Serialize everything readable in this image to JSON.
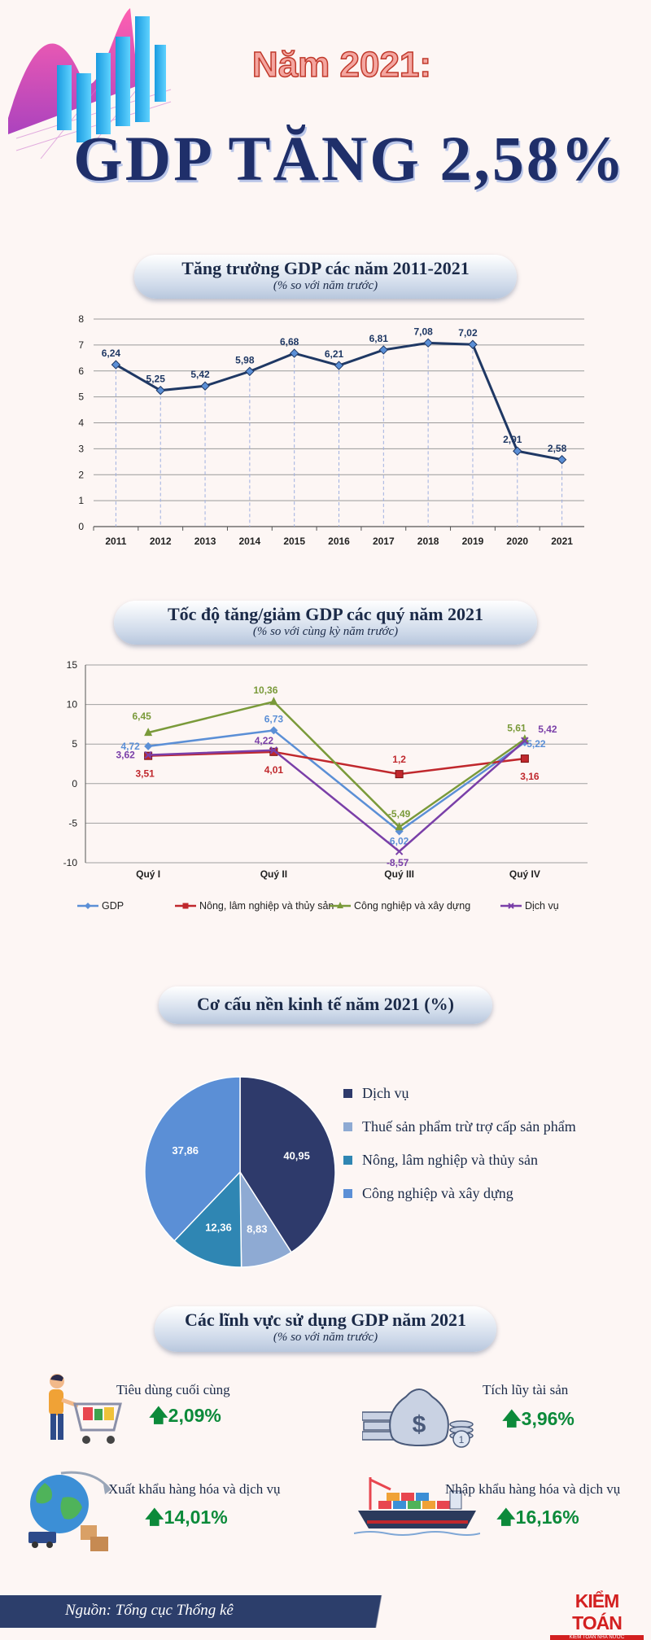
{
  "header": {
    "line1": "Năm 2021:",
    "line2": "GDP TĂNG 2,58%"
  },
  "sections": {
    "s1": {
      "title": "Tăng trưởng GDP các năm 2011-2021",
      "subtitle": "(% so với năm trước)"
    },
    "s2": {
      "title": "Tốc độ tăng/giảm GDP các quý năm 2021",
      "subtitle": "(% so với cùng kỳ năm trước)"
    },
    "s3": {
      "title": "Cơ cấu nền kinh tế năm 2021 (%)"
    },
    "s4": {
      "title": "Các lĩnh vực sử dụng GDP năm 2021",
      "subtitle": "(% so với năm trước)"
    }
  },
  "chart_data": [
    {
      "type": "line",
      "x": [
        "2011",
        "2012",
        "2013",
        "2014",
        "2015",
        "2016",
        "2017",
        "2018",
        "2019",
        "2020",
        "2021"
      ],
      "values": [
        6.24,
        5.25,
        5.42,
        5.98,
        6.68,
        6.21,
        6.81,
        7.08,
        7.02,
        2.91,
        2.58
      ],
      "labels": [
        "6,24",
        "5,25",
        "5,42",
        "5,98",
        "6,68",
        "6,21",
        "6,81",
        "7,08",
        "7,02",
        "2,91",
        "2,58"
      ],
      "yticks": [
        "0",
        "1",
        "2",
        "3",
        "4",
        "5",
        "6",
        "7",
        "8"
      ],
      "ylim": [
        0,
        8
      ],
      "grid": true,
      "color": "#1f3864"
    },
    {
      "type": "line",
      "categories": [
        "Quý I",
        "Quý II",
        "Quý III",
        "Quý IV"
      ],
      "yticks": [
        "15",
        "10",
        "5",
        "0",
        "-5",
        "-10"
      ],
      "ylim": [
        -10,
        15
      ],
      "grid": true,
      "legend": "bottom",
      "series": [
        {
          "name": "GDP",
          "color": "#5b8fd6",
          "marker": "diamond",
          "values": [
            4.72,
            6.73,
            -6.02,
            5.22
          ],
          "labels": [
            "4,72",
            "6,73",
            "-6,02",
            "5,22"
          ]
        },
        {
          "name": "Nông, lâm nghiệp và thủy sản",
          "color": "#c0282d",
          "marker": "square",
          "values": [
            3.51,
            4.01,
            1.2,
            3.16
          ],
          "labels": [
            "3,51",
            "4,01",
            "1,2",
            "3,16"
          ]
        },
        {
          "name": "Công nghiệp và xây dựng",
          "color": "#7a9a3a",
          "marker": "triangle",
          "values": [
            6.45,
            10.36,
            -5.49,
            5.61
          ],
          "labels": [
            "6,45",
            "10,36",
            "-5,49",
            "5,61"
          ]
        },
        {
          "name": "Dịch vụ",
          "color": "#7a3fa8",
          "marker": "x",
          "values": [
            3.62,
            4.22,
            -8.57,
            5.42
          ],
          "labels": [
            "3,62",
            "4,22",
            "-8,57",
            "5,42"
          ]
        }
      ]
    },
    {
      "type": "pie",
      "slices": [
        {
          "name": "Dịch vụ",
          "value": 40.95,
          "label": "40,95",
          "color": "#2e3a6b"
        },
        {
          "name": "Thuế sản phẩm trừ trợ cấp sản phẩm",
          "value": 8.83,
          "label": "8,83",
          "color": "#8eaad3"
        },
        {
          "name": "Nông, lâm nghiệp và thủy sản",
          "value": 12.36,
          "label": "12,36",
          "color": "#2f86b3"
        },
        {
          "name": "Công nghiệp và xây dựng",
          "value": 37.86,
          "label": "37,86",
          "color": "#5b8fd6"
        }
      ],
      "legend": "right"
    }
  ],
  "uses": [
    {
      "label": "Tiêu dùng cuối cùng",
      "value": "2,09%",
      "icon": "shopping-cart-icon"
    },
    {
      "label": "Tích lũy tài sản",
      "value": "3,96%",
      "icon": "money-bag-icon"
    },
    {
      "label": "Xuất khẩu hàng hóa và dịch vụ",
      "value": "14,01%",
      "icon": "globe-icon"
    },
    {
      "label": "Nhập khẩu hàng hóa và dịch vụ",
      "value": "16,16%",
      "icon": "cargo-ship-icon"
    }
  ],
  "footer": {
    "source": "Nguồn: Tổng cục Thống kê",
    "logo": "KIỂM TOÁN",
    "logo_sub": "KIỂM TOÁN NHÀ NƯỚC"
  }
}
